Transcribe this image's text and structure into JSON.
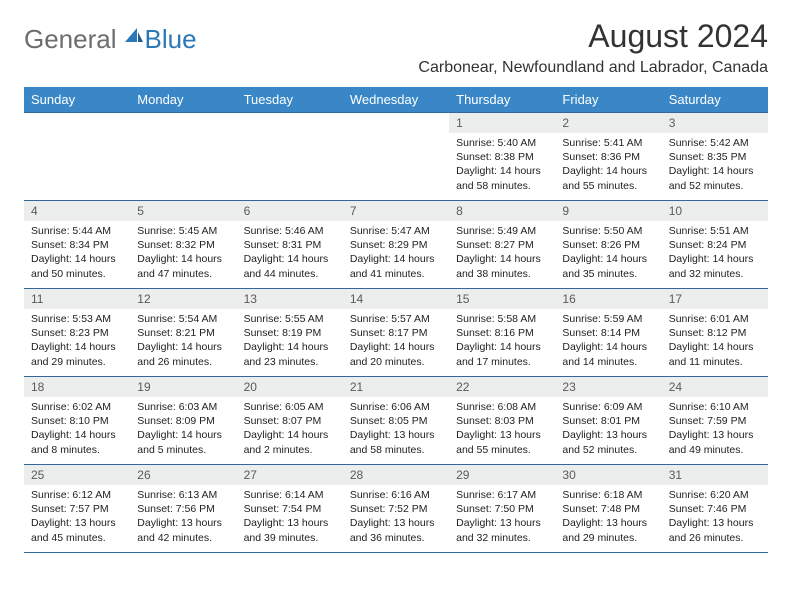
{
  "logo": {
    "general": "General",
    "blue": "Blue"
  },
  "title": "August 2024",
  "location": "Carbonear, Newfoundland and Labrador, Canada",
  "colors": {
    "header_bg": "#3a87c7",
    "header_text": "#ffffff",
    "daynum_bg": "#eceded",
    "daynum_text": "#5a5a5a",
    "border": "#2f6a99",
    "title_text": "#333333",
    "logo_gray": "#6d6d6d",
    "logo_blue": "#2b78b8"
  },
  "weekdays": [
    "Sunday",
    "Monday",
    "Tuesday",
    "Wednesday",
    "Thursday",
    "Friday",
    "Saturday"
  ],
  "weeks": [
    [
      null,
      null,
      null,
      null,
      {
        "n": "1",
        "sr": "Sunrise: 5:40 AM",
        "ss": "Sunset: 8:38 PM",
        "d1": "Daylight: 14 hours",
        "d2": "and 58 minutes."
      },
      {
        "n": "2",
        "sr": "Sunrise: 5:41 AM",
        "ss": "Sunset: 8:36 PM",
        "d1": "Daylight: 14 hours",
        "d2": "and 55 minutes."
      },
      {
        "n": "3",
        "sr": "Sunrise: 5:42 AM",
        "ss": "Sunset: 8:35 PM",
        "d1": "Daylight: 14 hours",
        "d2": "and 52 minutes."
      }
    ],
    [
      {
        "n": "4",
        "sr": "Sunrise: 5:44 AM",
        "ss": "Sunset: 8:34 PM",
        "d1": "Daylight: 14 hours",
        "d2": "and 50 minutes."
      },
      {
        "n": "5",
        "sr": "Sunrise: 5:45 AM",
        "ss": "Sunset: 8:32 PM",
        "d1": "Daylight: 14 hours",
        "d2": "and 47 minutes."
      },
      {
        "n": "6",
        "sr": "Sunrise: 5:46 AM",
        "ss": "Sunset: 8:31 PM",
        "d1": "Daylight: 14 hours",
        "d2": "and 44 minutes."
      },
      {
        "n": "7",
        "sr": "Sunrise: 5:47 AM",
        "ss": "Sunset: 8:29 PM",
        "d1": "Daylight: 14 hours",
        "d2": "and 41 minutes."
      },
      {
        "n": "8",
        "sr": "Sunrise: 5:49 AM",
        "ss": "Sunset: 8:27 PM",
        "d1": "Daylight: 14 hours",
        "d2": "and 38 minutes."
      },
      {
        "n": "9",
        "sr": "Sunrise: 5:50 AM",
        "ss": "Sunset: 8:26 PM",
        "d1": "Daylight: 14 hours",
        "d2": "and 35 minutes."
      },
      {
        "n": "10",
        "sr": "Sunrise: 5:51 AM",
        "ss": "Sunset: 8:24 PM",
        "d1": "Daylight: 14 hours",
        "d2": "and 32 minutes."
      }
    ],
    [
      {
        "n": "11",
        "sr": "Sunrise: 5:53 AM",
        "ss": "Sunset: 8:23 PM",
        "d1": "Daylight: 14 hours",
        "d2": "and 29 minutes."
      },
      {
        "n": "12",
        "sr": "Sunrise: 5:54 AM",
        "ss": "Sunset: 8:21 PM",
        "d1": "Daylight: 14 hours",
        "d2": "and 26 minutes."
      },
      {
        "n": "13",
        "sr": "Sunrise: 5:55 AM",
        "ss": "Sunset: 8:19 PM",
        "d1": "Daylight: 14 hours",
        "d2": "and 23 minutes."
      },
      {
        "n": "14",
        "sr": "Sunrise: 5:57 AM",
        "ss": "Sunset: 8:17 PM",
        "d1": "Daylight: 14 hours",
        "d2": "and 20 minutes."
      },
      {
        "n": "15",
        "sr": "Sunrise: 5:58 AM",
        "ss": "Sunset: 8:16 PM",
        "d1": "Daylight: 14 hours",
        "d2": "and 17 minutes."
      },
      {
        "n": "16",
        "sr": "Sunrise: 5:59 AM",
        "ss": "Sunset: 8:14 PM",
        "d1": "Daylight: 14 hours",
        "d2": "and 14 minutes."
      },
      {
        "n": "17",
        "sr": "Sunrise: 6:01 AM",
        "ss": "Sunset: 8:12 PM",
        "d1": "Daylight: 14 hours",
        "d2": "and 11 minutes."
      }
    ],
    [
      {
        "n": "18",
        "sr": "Sunrise: 6:02 AM",
        "ss": "Sunset: 8:10 PM",
        "d1": "Daylight: 14 hours",
        "d2": "and 8 minutes."
      },
      {
        "n": "19",
        "sr": "Sunrise: 6:03 AM",
        "ss": "Sunset: 8:09 PM",
        "d1": "Daylight: 14 hours",
        "d2": "and 5 minutes."
      },
      {
        "n": "20",
        "sr": "Sunrise: 6:05 AM",
        "ss": "Sunset: 8:07 PM",
        "d1": "Daylight: 14 hours",
        "d2": "and 2 minutes."
      },
      {
        "n": "21",
        "sr": "Sunrise: 6:06 AM",
        "ss": "Sunset: 8:05 PM",
        "d1": "Daylight: 13 hours",
        "d2": "and 58 minutes."
      },
      {
        "n": "22",
        "sr": "Sunrise: 6:08 AM",
        "ss": "Sunset: 8:03 PM",
        "d1": "Daylight: 13 hours",
        "d2": "and 55 minutes."
      },
      {
        "n": "23",
        "sr": "Sunrise: 6:09 AM",
        "ss": "Sunset: 8:01 PM",
        "d1": "Daylight: 13 hours",
        "d2": "and 52 minutes."
      },
      {
        "n": "24",
        "sr": "Sunrise: 6:10 AM",
        "ss": "Sunset: 7:59 PM",
        "d1": "Daylight: 13 hours",
        "d2": "and 49 minutes."
      }
    ],
    [
      {
        "n": "25",
        "sr": "Sunrise: 6:12 AM",
        "ss": "Sunset: 7:57 PM",
        "d1": "Daylight: 13 hours",
        "d2": "and 45 minutes."
      },
      {
        "n": "26",
        "sr": "Sunrise: 6:13 AM",
        "ss": "Sunset: 7:56 PM",
        "d1": "Daylight: 13 hours",
        "d2": "and 42 minutes."
      },
      {
        "n": "27",
        "sr": "Sunrise: 6:14 AM",
        "ss": "Sunset: 7:54 PM",
        "d1": "Daylight: 13 hours",
        "d2": "and 39 minutes."
      },
      {
        "n": "28",
        "sr": "Sunrise: 6:16 AM",
        "ss": "Sunset: 7:52 PM",
        "d1": "Daylight: 13 hours",
        "d2": "and 36 minutes."
      },
      {
        "n": "29",
        "sr": "Sunrise: 6:17 AM",
        "ss": "Sunset: 7:50 PM",
        "d1": "Daylight: 13 hours",
        "d2": "and 32 minutes."
      },
      {
        "n": "30",
        "sr": "Sunrise: 6:18 AM",
        "ss": "Sunset: 7:48 PM",
        "d1": "Daylight: 13 hours",
        "d2": "and 29 minutes."
      },
      {
        "n": "31",
        "sr": "Sunrise: 6:20 AM",
        "ss": "Sunset: 7:46 PM",
        "d1": "Daylight: 13 hours",
        "d2": "and 26 minutes."
      }
    ]
  ]
}
